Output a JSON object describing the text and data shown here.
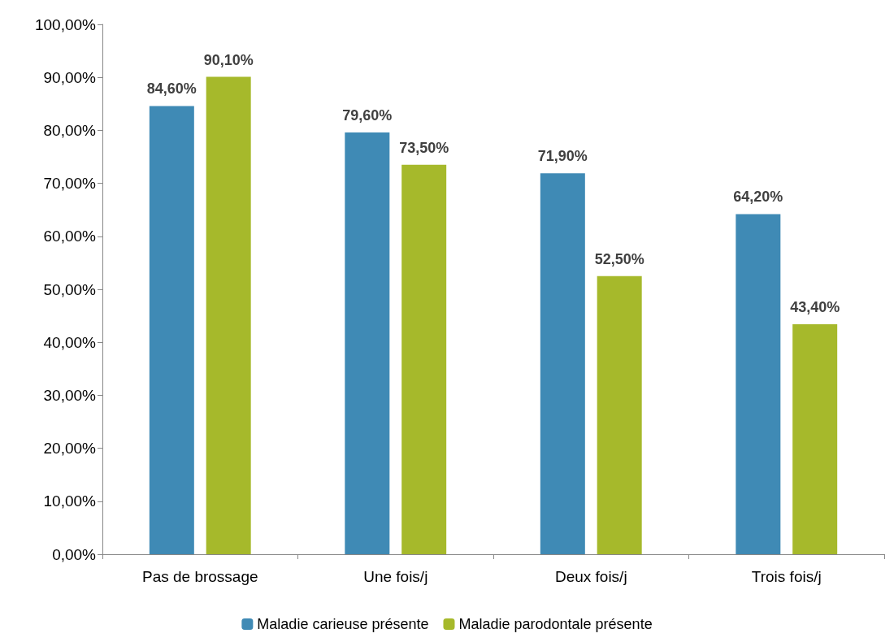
{
  "chart_data": {
    "type": "bar",
    "categories": [
      "Pas de brossage",
      "Une fois/j",
      "Deux fois/j",
      "Trois fois/j"
    ],
    "series": [
      {
        "name": "Maladie carieuse présente",
        "color": "#3f8ab5",
        "values": [
          84.6,
          79.6,
          71.9,
          64.2
        ],
        "value_labels": [
          "84,60%",
          "79,60%",
          "71,90%",
          "64,20%"
        ]
      },
      {
        "name": "Maladie parodontale présente",
        "color": "#a6b92b",
        "values": [
          90.1,
          73.5,
          52.5,
          43.4
        ],
        "value_labels": [
          "90,10%",
          "73,50%",
          "52,50%",
          "43,40%"
        ]
      }
    ],
    "ylim": [
      0,
      100
    ],
    "yticks": [
      {
        "value": 0,
        "label": "0,00%"
      },
      {
        "value": 10,
        "label": "10,00%"
      },
      {
        "value": 20,
        "label": "20,00%"
      },
      {
        "value": 30,
        "label": "30,00%"
      },
      {
        "value": 40,
        "label": "40,00%"
      },
      {
        "value": 50,
        "label": "50,00%"
      },
      {
        "value": 60,
        "label": "60,00%"
      },
      {
        "value": 70,
        "label": "70,00%"
      },
      {
        "value": 80,
        "label": "80,00%"
      },
      {
        "value": 90,
        "label": "90,00%"
      },
      {
        "value": 100,
        "label": "100,00%"
      }
    ],
    "grid": false,
    "legend": "bottom"
  }
}
